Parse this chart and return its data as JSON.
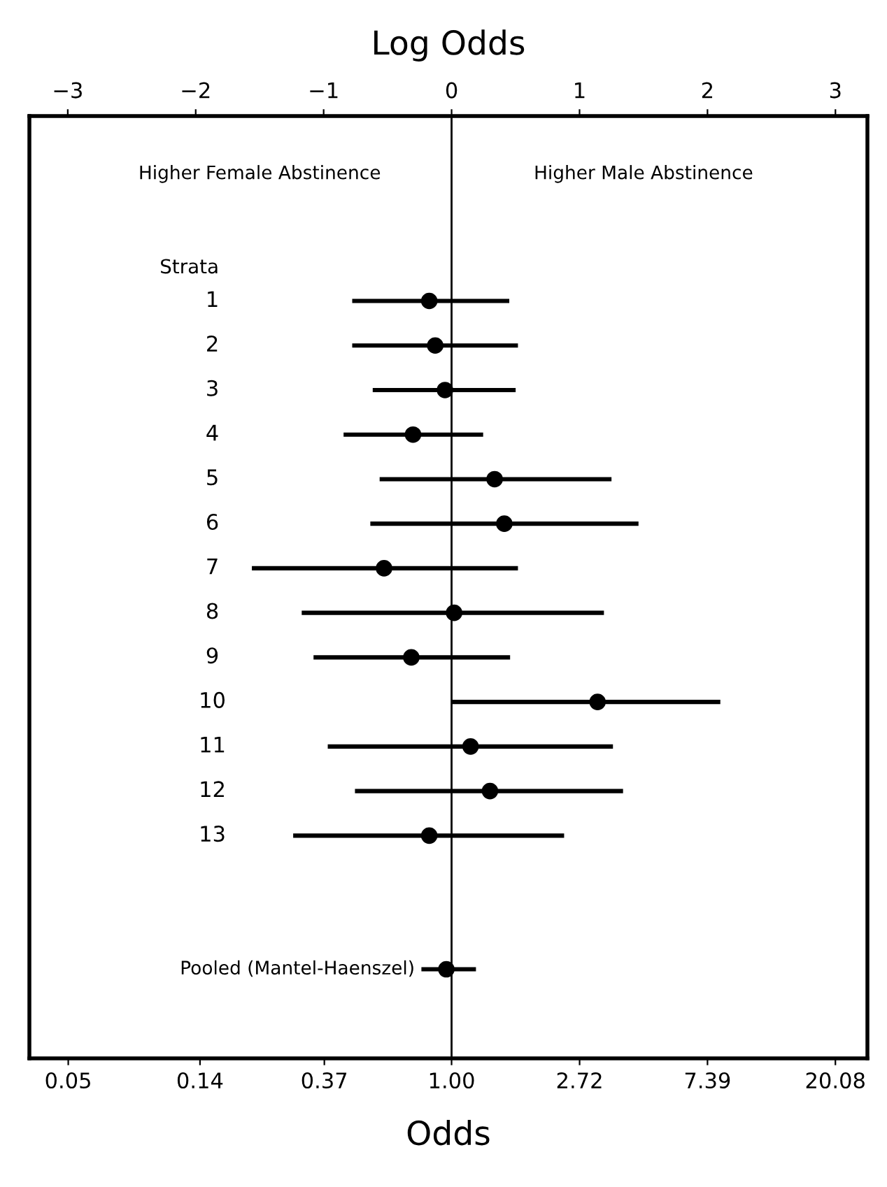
{
  "chart_data": {
    "type": "scatter",
    "orientation": "horizontal",
    "xlabel": "Odds",
    "x2label": "Log Odds",
    "log": "x",
    "categories": [
      "1",
      "2",
      "3",
      "4",
      "5",
      "6",
      "7",
      "8",
      "9",
      "10",
      "11",
      "12",
      "13",
      null,
      null,
      "Pooled (Mantel-Haenszel)"
    ],
    "series": [
      {
        "color": "#000000",
        "values": [
          0.84,
          0.88,
          0.95,
          0.74,
          1.4,
          1.51,
          0.59,
          1.02,
          0.73,
          3.13,
          1.16,
          1.35,
          0.84,
          null,
          null,
          0.96
        ],
        "errors": [
          [
            0.46,
            1.57
          ],
          [
            0.46,
            1.68
          ],
          [
            0.54,
            1.65
          ],
          [
            0.43,
            1.28
          ],
          [
            0.57,
            3.49
          ],
          [
            0.53,
            4.31
          ],
          [
            0.21,
            1.68
          ],
          [
            0.31,
            3.29
          ],
          [
            0.34,
            1.58
          ],
          [
            1.0,
            8.17
          ],
          [
            0.38,
            3.53
          ],
          [
            0.47,
            3.82
          ],
          [
            0.29,
            2.41
          ],
          null,
          null,
          [
            0.79,
            1.21
          ]
        ]
      }
    ],
    "marker": "circle",
    "xlim": [
      0.0369,
      25.79
    ],
    "xticks": [
      0.05,
      0.14,
      0.37,
      {
        "value": 1,
        "label": "1.00"
      },
      2.72,
      7.39,
      20.08
    ],
    "x2lim": [
      -3.3,
      3.25
    ],
    "x2ticks": [
      {
        "value": -3,
        "label": "−3"
      },
      {
        "value": -2,
        "label": "−2"
      },
      {
        "value": -1,
        "label": "−1"
      },
      0,
      1,
      2,
      3
    ],
    "ref_lines": [
      {
        "axis": "x",
        "value": 1,
        "color": "#000000"
      }
    ],
    "annotations": [
      "Higher Female Abstinence",
      "Higher Male Abstinence",
      "Strata"
    ],
    "grid": false,
    "legend": false
  }
}
